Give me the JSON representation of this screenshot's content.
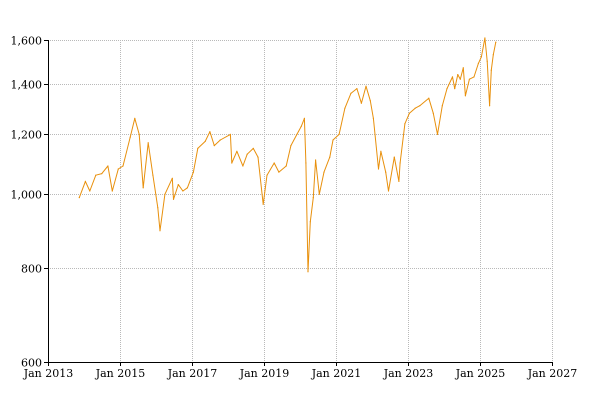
{
  "chart_data": {
    "type": "line",
    "title": "",
    "xlabel": "",
    "ylabel": "",
    "y_scale": "log",
    "grid": true,
    "xlim": [
      "2013-01-01",
      "2027-01-01"
    ],
    "ylim": [
      600,
      1600
    ],
    "x_ticks": [
      "Jan 2013",
      "Jan 2015",
      "Jan 2017",
      "Jan 2019",
      "Jan 2021",
      "Jan 2023",
      "Jan 2025",
      "Jan 2027"
    ],
    "y_ticks": [
      {
        "value": 600,
        "label": "600"
      },
      {
        "value": 800,
        "label": "800"
      },
      {
        "value": 1000,
        "label": "1,000"
      },
      {
        "value": 1200,
        "label": "1,200"
      },
      {
        "value": 1400,
        "label": "1,400"
      },
      {
        "value": 1600,
        "label": "1,600"
      }
    ],
    "colors": {
      "line": "#e8900c",
      "grid": "#b9b9b9",
      "axis": "#000000"
    },
    "series": [
      {
        "x": [
          "2013-11-15",
          "2014-01-15",
          "2014-03-01",
          "2014-05-01",
          "2014-07-01",
          "2014-09-01",
          "2014-10-15",
          "2014-12-15",
          "2015-02-01",
          "2015-04-15",
          "2015-06-01",
          "2015-07-15",
          "2015-08-25",
          "2015-10-15",
          "2015-12-01",
          "2016-01-20",
          "2016-02-11",
          "2016-04-01",
          "2016-06-15",
          "2016-06-27",
          "2016-08-15",
          "2016-10-01",
          "2016-11-15",
          "2017-01-15",
          "2017-03-01",
          "2017-05-15",
          "2017-07-01",
          "2017-08-15",
          "2017-10-15",
          "2018-01-25",
          "2018-02-09",
          "2018-04-01",
          "2018-06-01",
          "2018-07-15",
          "2018-09-15",
          "2018-11-01",
          "2018-12-24",
          "2019-02-01",
          "2019-04-15",
          "2019-06-01",
          "2019-08-15",
          "2019-10-01",
          "2019-12-01",
          "2020-01-15",
          "2020-02-15",
          "2020-03-01",
          "2020-03-23",
          "2020-04-15",
          "2020-05-15",
          "2020-06-08",
          "2020-07-15",
          "2020-09-01",
          "2020-10-30",
          "2020-12-01",
          "2021-02-01",
          "2021-04-01",
          "2021-06-01",
          "2021-08-01",
          "2021-09-15",
          "2021-11-01",
          "2021-12-15",
          "2022-01-15",
          "2022-03-08",
          "2022-04-01",
          "2022-05-20",
          "2022-06-17",
          "2022-08-15",
          "2022-10-01",
          "2022-10-13",
          "2022-12-01",
          "2023-01-15",
          "2023-03-15",
          "2023-05-01",
          "2023-07-31",
          "2023-09-15",
          "2023-10-27",
          "2023-12-15",
          "2024-02-01",
          "2024-03-28",
          "2024-04-19",
          "2024-05-20",
          "2024-06-15",
          "2024-07-15",
          "2024-08-05",
          "2024-09-15",
          "2024-11-01",
          "2024-12-15",
          "2025-01-15",
          "2025-02-19",
          "2025-03-15",
          "2025-04-08",
          "2025-04-25",
          "2025-05-15",
          "2025-06-10"
        ],
        "y": [
          990,
          1040,
          1010,
          1060,
          1065,
          1090,
          1010,
          1080,
          1090,
          1190,
          1260,
          1200,
          1020,
          1170,
          1060,
          960,
          895,
          1000,
          1050,
          985,
          1030,
          1010,
          1020,
          1070,
          1150,
          1175,
          1210,
          1160,
          1180,
          1200,
          1100,
          1140,
          1090,
          1130,
          1150,
          1120,
          970,
          1060,
          1100,
          1070,
          1090,
          1160,
          1200,
          1230,
          1260,
          1100,
          790,
          920,
          990,
          1110,
          1000,
          1070,
          1120,
          1180,
          1200,
          1300,
          1360,
          1380,
          1320,
          1390,
          1330,
          1260,
          1080,
          1140,
          1070,
          1010,
          1120,
          1040,
          1100,
          1240,
          1280,
          1300,
          1310,
          1340,
          1280,
          1200,
          1310,
          1380,
          1430,
          1380,
          1440,
          1420,
          1470,
          1350,
          1420,
          1430,
          1490,
          1520,
          1610,
          1500,
          1310,
          1460,
          1530,
          1590
        ]
      }
    ]
  }
}
